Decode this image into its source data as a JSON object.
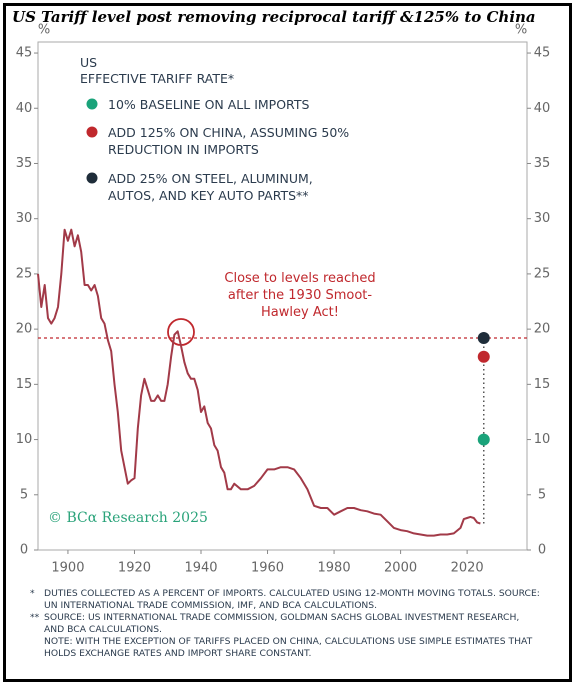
{
  "chart_data": {
    "type": "line",
    "title": "US Tariff level post removing reciprocal tariff &125% to China",
    "y_unit": "%",
    "legend_title": [
      "US",
      "EFFECTIVE TARIFF RATE*"
    ],
    "x": [
      1891,
      1892,
      1893,
      1894,
      1895,
      1896,
      1897,
      1898,
      1899,
      1900,
      1901,
      1902,
      1903,
      1904,
      1905,
      1906,
      1907,
      1908,
      1909,
      1910,
      1911,
      1912,
      1913,
      1914,
      1915,
      1916,
      1917,
      1918,
      1919,
      1920,
      1921,
      1922,
      1923,
      1924,
      1925,
      1926,
      1927,
      1928,
      1929,
      1930,
      1931,
      1932,
      1933,
      1934,
      1935,
      1936,
      1937,
      1938,
      1939,
      1940,
      1941,
      1942,
      1943,
      1944,
      1945,
      1946,
      1947,
      1948,
      1949,
      1950,
      1952,
      1954,
      1956,
      1958,
      1960,
      1962,
      1964,
      1966,
      1968,
      1970,
      1972,
      1974,
      1976,
      1978,
      1980,
      1982,
      1984,
      1986,
      1988,
      1990,
      1992,
      1994,
      1996,
      1998,
      2000,
      2002,
      2004,
      2006,
      2008,
      2010,
      2012,
      2014,
      2016,
      2018,
      2019,
      2020,
      2021,
      2022,
      2023,
      2024
    ],
    "series": [
      {
        "color": "#a23a48",
        "values": [
          25,
          22,
          24,
          21,
          20.5,
          21,
          22,
          25,
          29,
          28,
          29,
          27.5,
          28.5,
          27,
          24,
          24,
          23.5,
          24,
          23,
          21,
          20.5,
          19,
          18,
          15,
          12.5,
          9,
          7.5,
          6,
          6.3,
          6.5,
          11,
          14,
          15.5,
          14.5,
          13.5,
          13.5,
          14,
          13.5,
          13.5,
          15,
          17.5,
          19.5,
          19.8,
          18.5,
          17,
          16,
          15.5,
          15.5,
          14.5,
          12.5,
          13,
          11.5,
          11,
          9.5,
          9,
          7.5,
          7,
          5.5,
          5.5,
          6,
          5.5,
          5.5,
          5.8,
          6.5,
          7.3,
          7.3,
          7.5,
          7.5,
          7.3,
          6.5,
          5.5,
          4,
          3.8,
          3.8,
          3.2,
          3.5,
          3.8,
          3.8,
          3.6,
          3.5,
          3.3,
          3.2,
          2.6,
          2,
          1.8,
          1.7,
          1.5,
          1.4,
          1.3,
          1.3,
          1.4,
          1.4,
          1.5,
          2,
          2.8,
          2.9,
          3,
          2.9,
          2.5,
          2.4
        ]
      }
    ],
    "points": [
      {
        "name": "10% BASELINE ON ALL IMPORTS",
        "color": "#1aa37a",
        "x": 2025,
        "value": 10
      },
      {
        "name": "ADD 125% ON CHINA, ASSUMING 50% REDUCTION IN IMPORTS",
        "color": "#c0282d",
        "x": 2025,
        "value": 17.5
      },
      {
        "name": "ADD 25% ON STEEL, ALUMINUM, AUTOS, AND KEY AUTO PARTS**",
        "color": "#1f2d3a",
        "x": 2025,
        "value": 19.2
      }
    ],
    "annotation": "Close to levels reached after the 1930 Smoot-Hawley Act!",
    "watermark": "© BCα Research 2025",
    "xlim": [
      1891,
      2038
    ],
    "xticks": [
      1900,
      1920,
      1940,
      1960,
      1980,
      2000,
      2020
    ],
    "ylim": [
      0,
      46
    ],
    "yticks": [
      0,
      5,
      10,
      15,
      20,
      25,
      30,
      35,
      40,
      45
    ],
    "notes": [
      {
        "marker": "*",
        "text": "DUTIES COLLECTED AS A PERCENT OF IMPORTS. CALCULATED USING 12-MONTH MOVING TOTALS. SOURCE: UN INTERNATIONAL TRADE COMMISSION, IMF, AND BCA CALCULATIONS."
      },
      {
        "marker": "**",
        "text": "SOURCE: US INTERNATIONAL TRADE COMMISSION, GOLDMAN SACHS GLOBAL INVESTMENT RESEARCH, AND BCA CALCULATIONS."
      },
      {
        "marker": "",
        "text": "NOTE: WITH THE EXCEPTION OF TARIFFS PLACED ON CHINA, CALCULATIONS USE SIMPLE ESTIMATES THAT HOLDS EXCHANGE RATES AND IMPORT SHARE CONSTANT."
      }
    ]
  }
}
